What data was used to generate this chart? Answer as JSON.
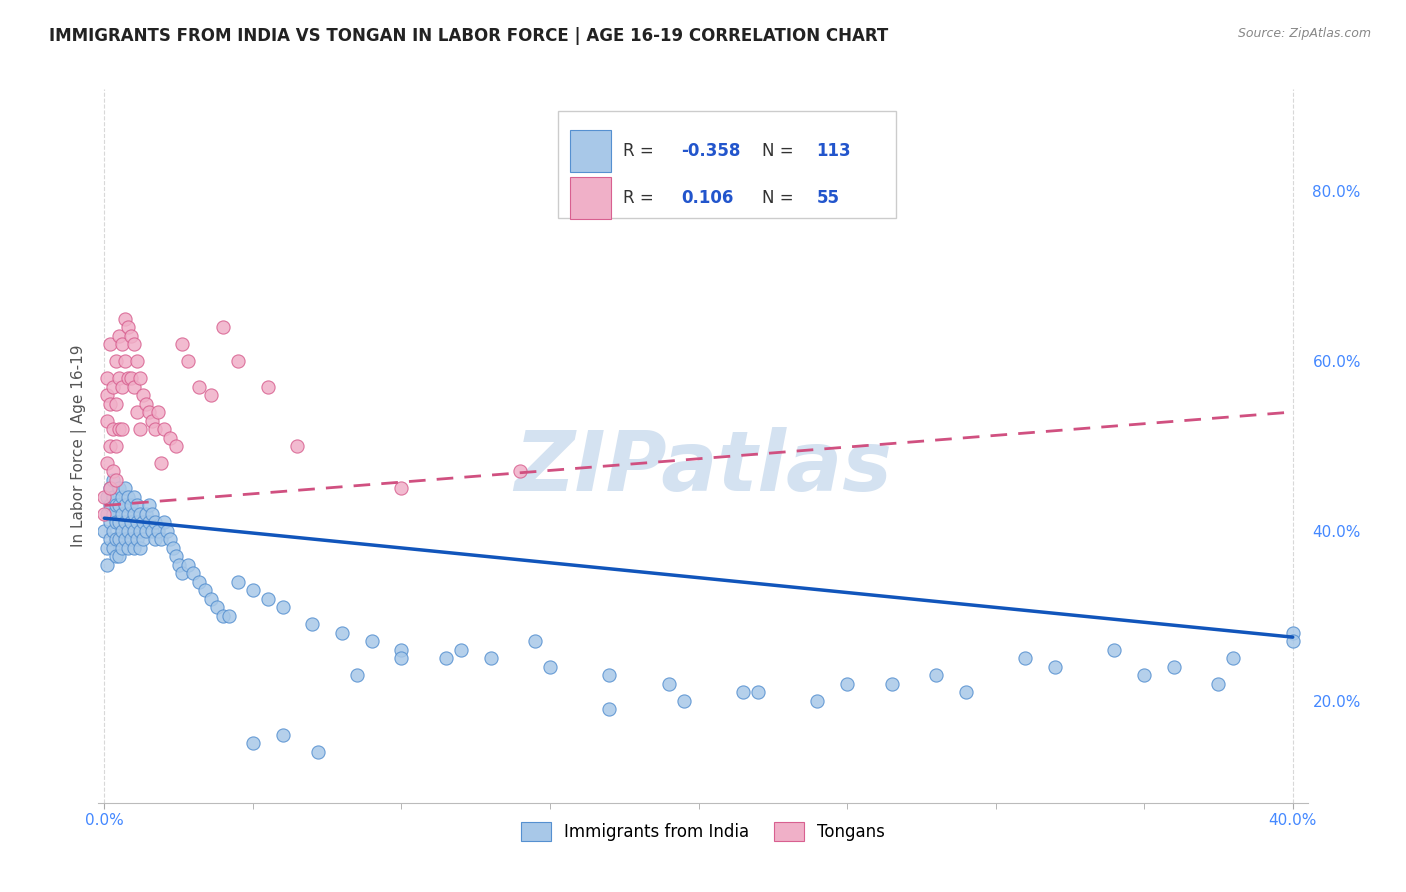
{
  "title": "IMMIGRANTS FROM INDIA VS TONGAN IN LABOR FORCE | AGE 16-19 CORRELATION CHART",
  "source": "Source: ZipAtlas.com",
  "ylabel": "In Labor Force | Age 16-19",
  "xlim": [
    -0.002,
    0.405
  ],
  "ylim": [
    0.08,
    0.92
  ],
  "legend_r_india": "-0.358",
  "legend_n_india": "113",
  "legend_r_tongan": "0.106",
  "legend_n_tongan": "55",
  "india_color": "#a8c8e8",
  "tongan_color": "#f0b0c8",
  "india_edge_color": "#5590d0",
  "tongan_edge_color": "#d86090",
  "india_line_color": "#1155bb",
  "tongan_line_color": "#d05080",
  "india_scatter_x": [
    0.0,
    0.001,
    0.001,
    0.001,
    0.001,
    0.002,
    0.002,
    0.002,
    0.002,
    0.003,
    0.003,
    0.003,
    0.003,
    0.003,
    0.004,
    0.004,
    0.004,
    0.004,
    0.005,
    0.005,
    0.005,
    0.005,
    0.005,
    0.006,
    0.006,
    0.006,
    0.006,
    0.007,
    0.007,
    0.007,
    0.007,
    0.008,
    0.008,
    0.008,
    0.008,
    0.009,
    0.009,
    0.009,
    0.01,
    0.01,
    0.01,
    0.01,
    0.011,
    0.011,
    0.011,
    0.012,
    0.012,
    0.012,
    0.013,
    0.013,
    0.014,
    0.014,
    0.015,
    0.015,
    0.016,
    0.016,
    0.017,
    0.017,
    0.018,
    0.019,
    0.02,
    0.021,
    0.022,
    0.023,
    0.024,
    0.025,
    0.026,
    0.028,
    0.03,
    0.032,
    0.034,
    0.036,
    0.038,
    0.04,
    0.045,
    0.05,
    0.055,
    0.06,
    0.07,
    0.08,
    0.09,
    0.1,
    0.115,
    0.13,
    0.15,
    0.17,
    0.19,
    0.215,
    0.24,
    0.265,
    0.29,
    0.32,
    0.35,
    0.375,
    0.4,
    0.4,
    0.38,
    0.36,
    0.34,
    0.31,
    0.28,
    0.25,
    0.22,
    0.195,
    0.17,
    0.145,
    0.12,
    0.1,
    0.085,
    0.072,
    0.06,
    0.05,
    0.042
  ],
  "india_scatter_y": [
    0.4,
    0.42,
    0.38,
    0.44,
    0.36,
    0.43,
    0.41,
    0.39,
    0.45,
    0.44,
    0.42,
    0.4,
    0.38,
    0.46,
    0.43,
    0.41,
    0.39,
    0.37,
    0.45,
    0.43,
    0.41,
    0.39,
    0.37,
    0.44,
    0.42,
    0.4,
    0.38,
    0.45,
    0.43,
    0.41,
    0.39,
    0.44,
    0.42,
    0.4,
    0.38,
    0.43,
    0.41,
    0.39,
    0.44,
    0.42,
    0.4,
    0.38,
    0.43,
    0.41,
    0.39,
    0.42,
    0.4,
    0.38,
    0.41,
    0.39,
    0.42,
    0.4,
    0.43,
    0.41,
    0.42,
    0.4,
    0.41,
    0.39,
    0.4,
    0.39,
    0.41,
    0.4,
    0.39,
    0.38,
    0.37,
    0.36,
    0.35,
    0.36,
    0.35,
    0.34,
    0.33,
    0.32,
    0.31,
    0.3,
    0.34,
    0.33,
    0.32,
    0.31,
    0.29,
    0.28,
    0.27,
    0.26,
    0.25,
    0.25,
    0.24,
    0.23,
    0.22,
    0.21,
    0.2,
    0.22,
    0.21,
    0.24,
    0.23,
    0.22,
    0.28,
    0.27,
    0.25,
    0.24,
    0.26,
    0.25,
    0.23,
    0.22,
    0.21,
    0.2,
    0.19,
    0.27,
    0.26,
    0.25,
    0.23,
    0.14,
    0.16,
    0.15,
    0.3
  ],
  "tongan_scatter_x": [
    0.0,
    0.0,
    0.001,
    0.001,
    0.001,
    0.001,
    0.002,
    0.002,
    0.002,
    0.002,
    0.003,
    0.003,
    0.003,
    0.004,
    0.004,
    0.004,
    0.004,
    0.005,
    0.005,
    0.005,
    0.006,
    0.006,
    0.006,
    0.007,
    0.007,
    0.008,
    0.008,
    0.009,
    0.009,
    0.01,
    0.01,
    0.011,
    0.011,
    0.012,
    0.012,
    0.013,
    0.014,
    0.015,
    0.016,
    0.017,
    0.018,
    0.019,
    0.02,
    0.022,
    0.024,
    0.026,
    0.028,
    0.032,
    0.036,
    0.04,
    0.045,
    0.055,
    0.065,
    0.1,
    0.14
  ],
  "tongan_scatter_y": [
    0.42,
    0.44,
    0.56,
    0.53,
    0.58,
    0.48,
    0.55,
    0.5,
    0.45,
    0.62,
    0.57,
    0.52,
    0.47,
    0.6,
    0.55,
    0.5,
    0.46,
    0.63,
    0.58,
    0.52,
    0.62,
    0.57,
    0.52,
    0.65,
    0.6,
    0.64,
    0.58,
    0.63,
    0.58,
    0.62,
    0.57,
    0.6,
    0.54,
    0.58,
    0.52,
    0.56,
    0.55,
    0.54,
    0.53,
    0.52,
    0.54,
    0.48,
    0.52,
    0.51,
    0.5,
    0.62,
    0.6,
    0.57,
    0.56,
    0.64,
    0.6,
    0.57,
    0.5,
    0.45,
    0.47
  ],
  "india_trend_x": [
    0.0,
    0.4
  ],
  "india_trend_y": [
    0.415,
    0.275
  ],
  "tongan_trend_x": [
    0.0,
    0.4
  ],
  "tongan_trend_y": [
    0.43,
    0.54
  ],
  "right_yticks": [
    0.2,
    0.4,
    0.6,
    0.8
  ],
  "right_yticklabels": [
    "20.0%",
    "40.0%",
    "60.0%",
    "80.0%"
  ],
  "xtick_positions": [
    0.0,
    0.4
  ],
  "xtick_labels": [
    "0.0%",
    "40.0%"
  ],
  "background_color": "#ffffff",
  "grid_color": "#d8d8d8",
  "title_color": "#222222",
  "source_color": "#888888",
  "right_tick_color": "#4488ff",
  "watermark_text": "ZIPatlas",
  "watermark_color": "#b8cfe8",
  "legend_box_color": "#ffffff",
  "legend_border_color": "#cccccc",
  "title_fontsize": 12,
  "source_fontsize": 9,
  "axis_label_fontsize": 11,
  "tick_fontsize": 11,
  "legend_fontsize": 12,
  "watermark_fontsize": 60
}
